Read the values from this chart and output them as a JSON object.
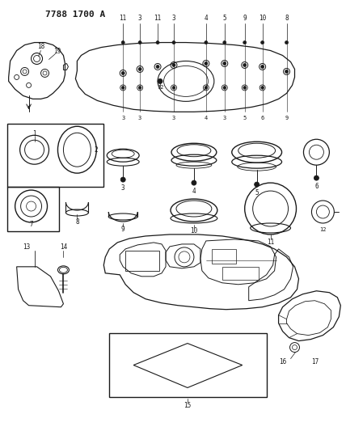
{
  "title": "7788 1700 A",
  "bg_color": "#ffffff",
  "line_color": "#1a1a1a",
  "fig_width": 4.28,
  "fig_height": 5.33,
  "dpi": 100
}
